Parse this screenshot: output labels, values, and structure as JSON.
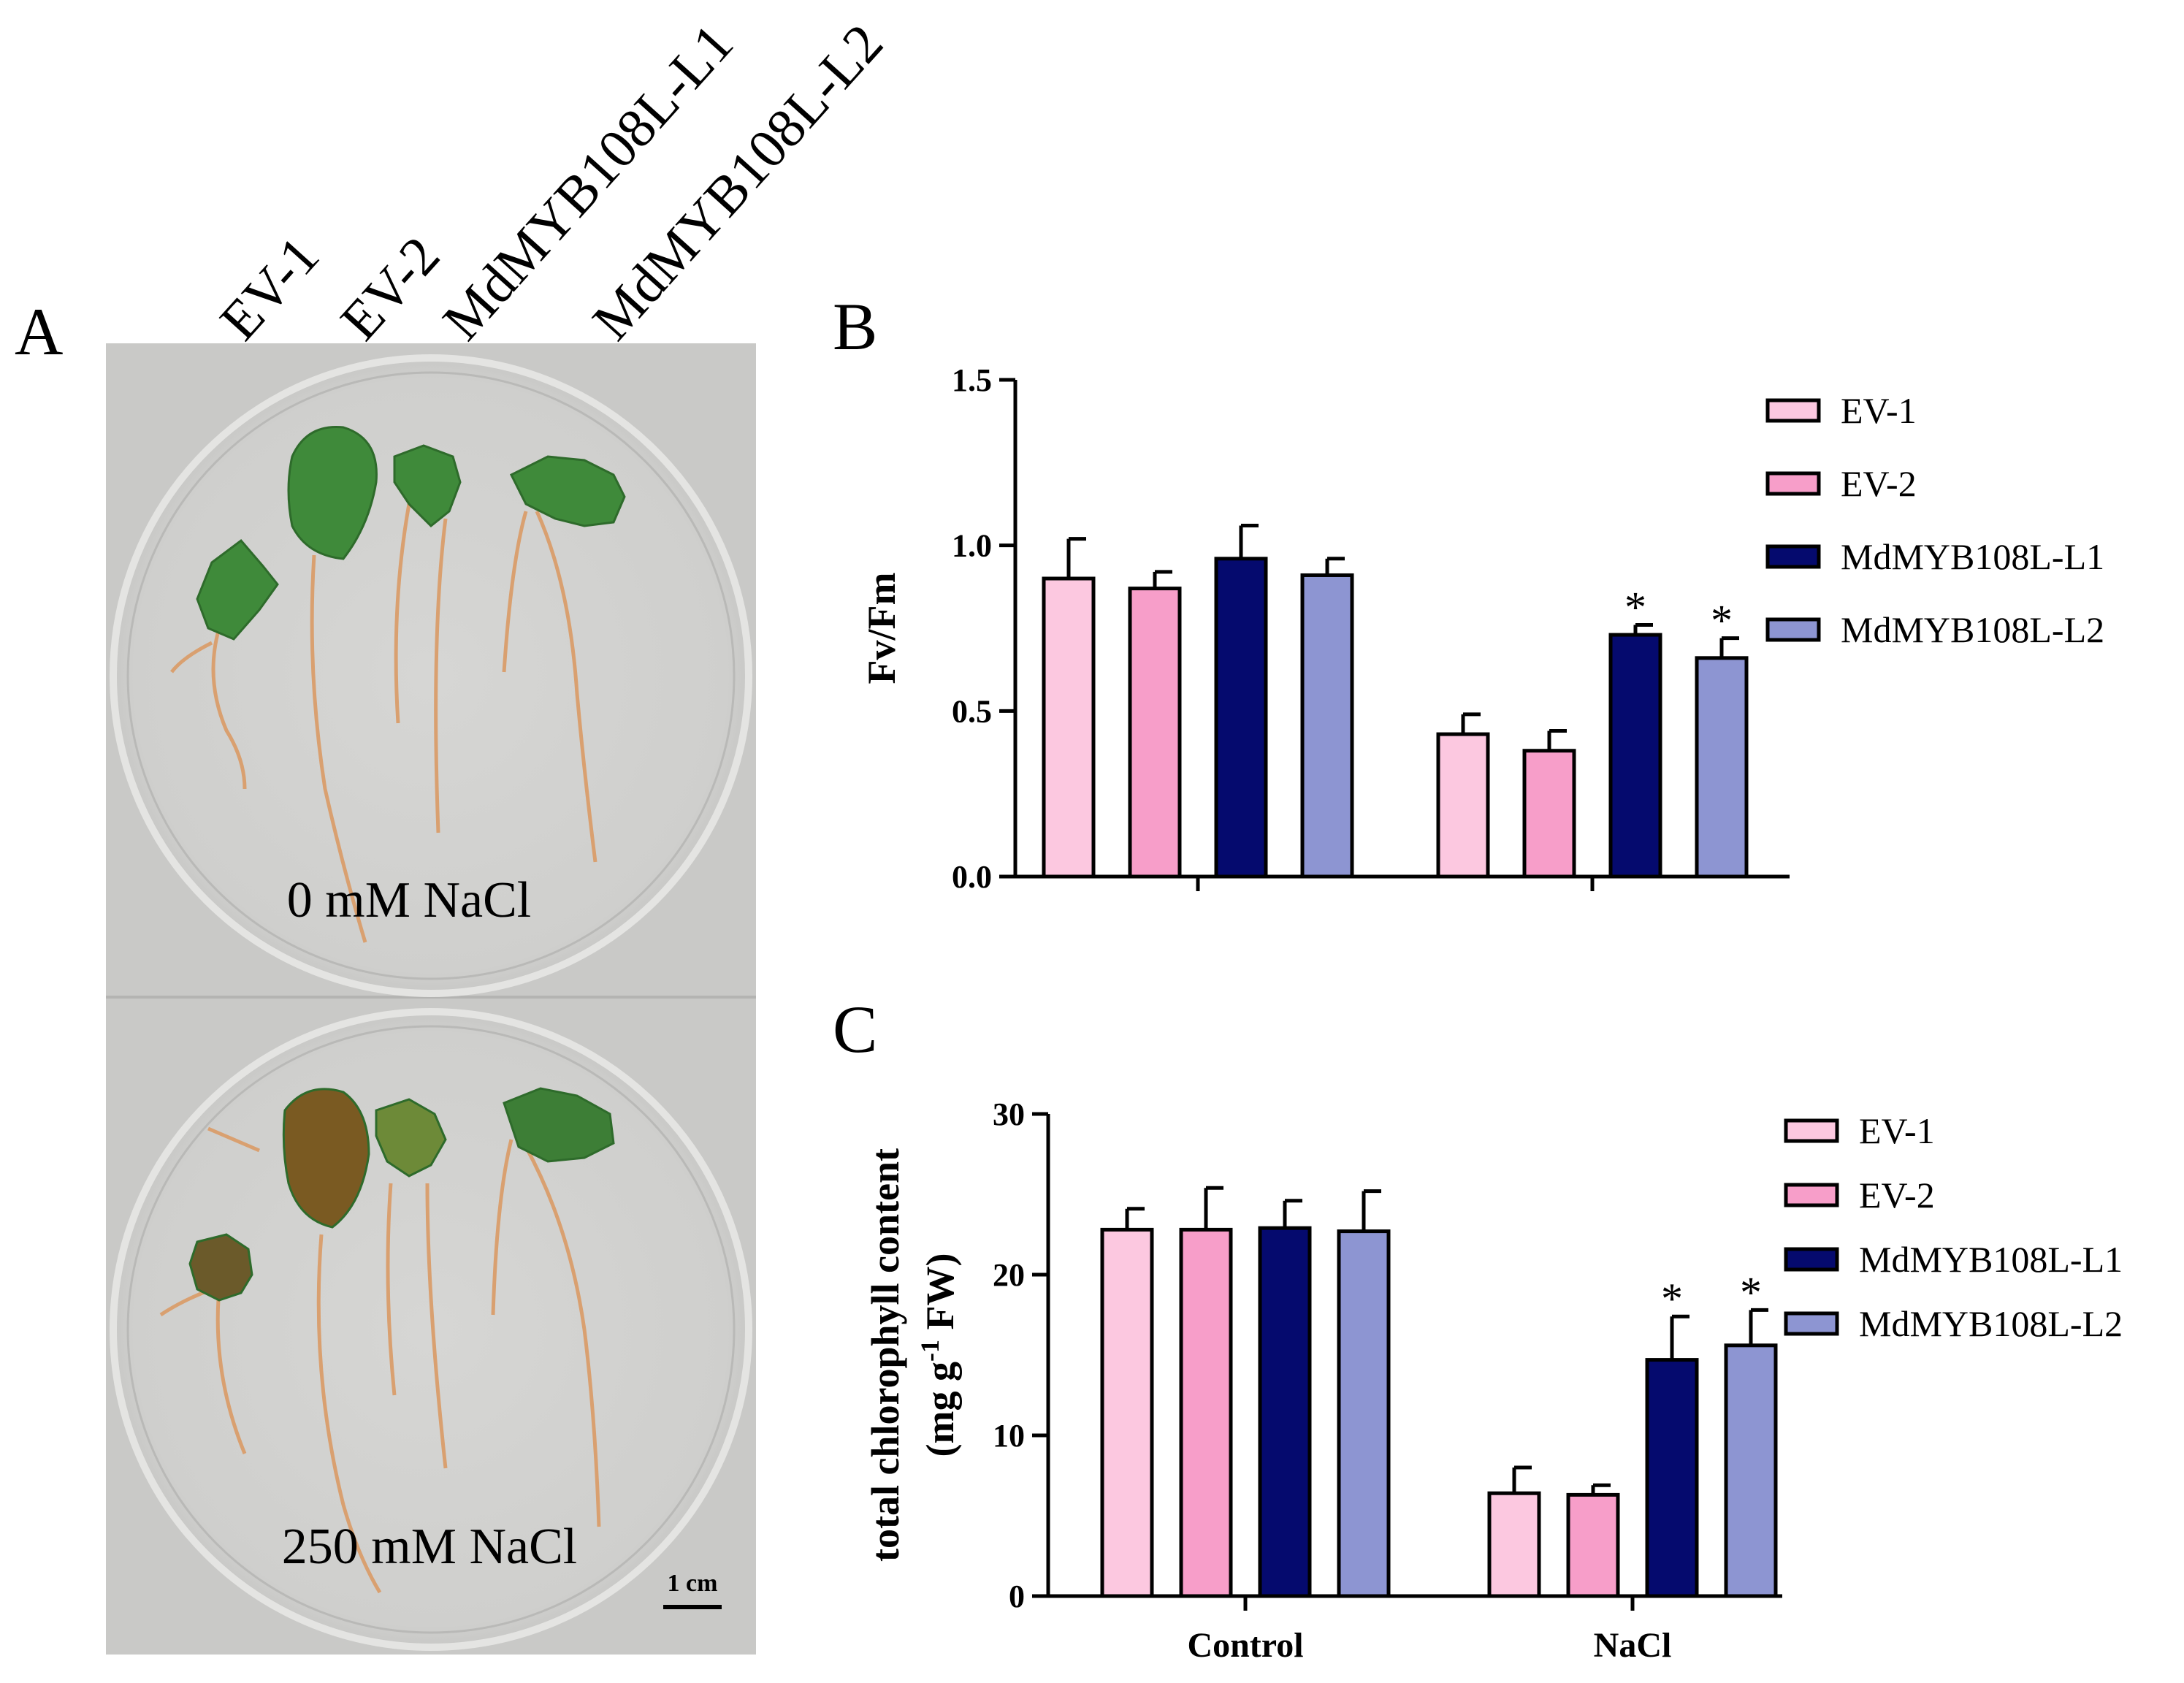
{
  "panels": {
    "a": "A",
    "b": "B",
    "c": "C"
  },
  "photo": {
    "lane_labels": [
      "EV-1",
      "EV-2",
      "MdMYB108L-L1",
      "MdMYB108L-L2"
    ],
    "top_plate_label": "0 mM NaCl",
    "bottom_plate_label": "250 mM NaCl",
    "scale_bar_label": "1 cm"
  },
  "colors": {
    "EV-1": "#fcc8e0",
    "EV-2": "#f79ec9",
    "MdMYB108L-L1": "#050a6e",
    "MdMYB108L-L2": "#8d95d2"
  },
  "chart_data": [
    {
      "type": "bar",
      "panel": "B",
      "title": "",
      "xlabel": "",
      "ylabel": "Fv/Fm",
      "ylim": [
        0,
        1.5
      ],
      "yticks": [
        "0.0",
        "0.5",
        "1.0",
        "1.5"
      ],
      "groups": [
        "Control",
        "NaCl"
      ],
      "show_group_labels": false,
      "series": [
        {
          "name": "EV-1",
          "values": [
            0.9,
            0.43
          ],
          "errors": [
            0.12,
            0.06
          ],
          "sig": [
            "",
            ""
          ]
        },
        {
          "name": "EV-2",
          "values": [
            0.87,
            0.38
          ],
          "errors": [
            0.05,
            0.06
          ],
          "sig": [
            "",
            ""
          ]
        },
        {
          "name": "MdMYB108L-L1",
          "values": [
            0.96,
            0.73
          ],
          "errors": [
            0.1,
            0.03
          ],
          "sig": [
            "",
            "*"
          ]
        },
        {
          "name": "MdMYB108L-L2",
          "values": [
            0.91,
            0.66
          ],
          "errors": [
            0.05,
            0.06
          ],
          "sig": [
            "",
            "*"
          ]
        }
      ],
      "legend_position": "right"
    },
    {
      "type": "bar",
      "panel": "C",
      "title": "",
      "xlabel": "",
      "ylabel": "total chlorophyll content",
      "ylabel2": "(mg g",
      "ylabel2_sup": "-1",
      "ylabel2_end": " FW)",
      "ylim": [
        0,
        30
      ],
      "yticks": [
        "0",
        "10",
        "20",
        "30"
      ],
      "groups": [
        "Control",
        "NaCl"
      ],
      "show_group_labels": true,
      "series": [
        {
          "name": "EV-1",
          "values": [
            22.8,
            6.4
          ],
          "errors": [
            1.3,
            1.6
          ],
          "sig": [
            "",
            ""
          ]
        },
        {
          "name": "EV-2",
          "values": [
            22.8,
            6.3
          ],
          "errors": [
            2.6,
            0.6
          ],
          "sig": [
            "",
            ""
          ]
        },
        {
          "name": "MdMYB108L-L1",
          "values": [
            22.9,
            14.7
          ],
          "errors": [
            1.7,
            2.7
          ],
          "sig": [
            "",
            "*"
          ]
        },
        {
          "name": "MdMYB108L-L2",
          "values": [
            22.7,
            15.6
          ],
          "errors": [
            2.5,
            2.2
          ],
          "sig": [
            "",
            "*"
          ]
        }
      ],
      "legend_position": "right"
    }
  ]
}
